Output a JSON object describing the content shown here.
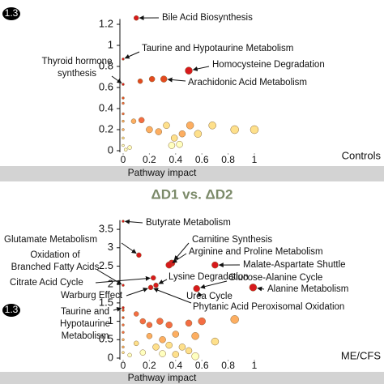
{
  "title": "ΔD1 vs. ΔD2",
  "chart_data": [
    {
      "type": "scatter",
      "panel_label": "Controls",
      "x_label": "Pathway impact",
      "threshold": 1.3,
      "xlim": [
        0,
        1
      ],
      "xticks": [
        0,
        0.2,
        0.4,
        0.6,
        0.8,
        1
      ],
      "ylim": [
        0,
        1.25
      ],
      "yticks": [
        0,
        0.2,
        0.4,
        0.6,
        0.8,
        1,
        1.2
      ],
      "series": [
        {
          "x": [
            0.1,
            0,
            0.5,
            0,
            0.13,
            0.22,
            0.31,
            0,
            0,
            0,
            0,
            0,
            0,
            0,
            0.08,
            0.14,
            0.2,
            0.27,
            0.33,
            0.39,
            0.45,
            0.51,
            0.57,
            0.68,
            0.85,
            1.0,
            0.37,
            0.43,
            0.05,
            0.02
          ],
          "values": [
            1.26,
            0.87,
            0.76,
            0.63,
            0.66,
            0.68,
            0.68,
            0.5,
            0.45,
            0.35,
            0.28,
            0.2,
            0.12,
            0.05,
            0.28,
            0.29,
            0.2,
            0.18,
            0.24,
            0.12,
            0.16,
            0.24,
            0.16,
            0.24,
            0.2,
            0.2,
            0.05,
            0.06,
            0.03,
            0.01
          ],
          "sizes": [
            3,
            1.5,
            4.5,
            1.5,
            3,
            3.5,
            4,
            1.5,
            1.5,
            1.5,
            1.5,
            1.5,
            1.5,
            1.5,
            3,
            3.5,
            4,
            4,
            4,
            4,
            4,
            4.5,
            4.5,
            4.5,
            5,
            5,
            4,
            4,
            2.5,
            2
          ],
          "colors": [
            "#d7191c",
            "#d7191c",
            "#d7191c",
            "#d7191c",
            "#e34a1f",
            "#e34a1f",
            "#e34a1f",
            "#e34a1f",
            "#f46d43",
            "#f46d43",
            "#fdae61",
            "#fdae61",
            "#fee08b",
            "#ffffbf",
            "#fdae61",
            "#f46d43",
            "#fdae61",
            "#fdae61",
            "#fee08b",
            "#fee08b",
            "#fdae61",
            "#fdae61",
            "#fee08b",
            "#fee08b",
            "#fee08b",
            "#fee08b",
            "#ffffbf",
            "#ffffbf",
            "#ffffbf",
            "#ffffbf"
          ]
        }
      ],
      "annotations": [
        [
          "Bile Acid Biosynthesis"
        ],
        [
          "Taurine and Hypotaurine Metabolism"
        ],
        [
          "Thyroid hormone",
          "synthesis"
        ],
        [
          "Homocysteine Degradation"
        ],
        [
          "Arachidonic Acid Metabolism"
        ]
      ]
    },
    {
      "type": "scatter",
      "panel_label": "ME/CFS",
      "x_label": "Pathway impact",
      "threshold": 1.3,
      "xlim": [
        0,
        1
      ],
      "xticks": [
        0,
        0.2,
        0.4,
        0.6,
        0.8,
        1
      ],
      "ylim": [
        0,
        3.75
      ],
      "yticks": [
        0,
        0.5,
        1,
        1.5,
        2,
        2.5,
        3,
        3.5
      ],
      "series": [
        {
          "x": [
            0,
            0.12,
            0.37,
            0.35,
            0.7,
            0,
            0.23,
            0.25,
            0.21,
            0.56,
            0.99,
            0,
            0,
            0,
            0,
            0,
            0,
            0,
            0,
            0.1,
            0.15,
            0.2,
            0.28,
            0.35,
            0.5,
            0.6,
            0.85,
            0.4,
            0.55,
            0.7,
            0.3,
            0.2,
            0.1,
            0.25,
            0.35,
            0.45,
            0.5,
            0.15,
            0.3,
            0.4,
            0.55,
            0.05
          ],
          "values": [
            3.72,
            2.8,
            2.58,
            2.53,
            2.53,
            1.98,
            2.18,
            1.98,
            1.92,
            1.89,
            1.92,
            1.37,
            1.3,
            1.1,
            0.9,
            0.7,
            0.5,
            0.3,
            0.15,
            1.2,
            1.0,
            0.9,
            1.0,
            0.9,
            0.95,
            1.0,
            1.05,
            0.65,
            0.6,
            0.45,
            0.5,
            0.6,
            0.4,
            0.3,
            0.35,
            0.3,
            0.2,
            0.15,
            0.12,
            0.1,
            0.05,
            0.08
          ],
          "sizes": [
            1.5,
            3,
            4,
            4,
            4,
            1.5,
            3,
            3,
            3,
            4,
            4.5,
            1.5,
            1.5,
            1.5,
            1.5,
            1.5,
            1.5,
            1.5,
            1.5,
            3,
            3.5,
            3.5,
            4,
            4,
            4,
            4.5,
            5,
            4,
            4.5,
            4.5,
            4,
            3.5,
            3,
            4,
            4,
            4,
            4,
            3.5,
            4,
            4,
            4.5,
            2.5
          ],
          "colors": [
            "#d7191c",
            "#d7191c",
            "#d7191c",
            "#d7191c",
            "#d7191c",
            "#d7191c",
            "#d7191c",
            "#d7191c",
            "#d7191c",
            "#d7191c",
            "#d7191c",
            "#d7191c",
            "#e34a1f",
            "#e34a1f",
            "#f46d43",
            "#f46d43",
            "#fdae61",
            "#fdae61",
            "#fee08b",
            "#f46d43",
            "#f46d43",
            "#f46d43",
            "#f46d43",
            "#f46d43",
            "#f46d43",
            "#f46d43",
            "#fdae61",
            "#fdae61",
            "#fdae61",
            "#fee08b",
            "#fdae61",
            "#fdae61",
            "#fee08b",
            "#fee08b",
            "#fee08b",
            "#fee08b",
            "#fee08b",
            "#ffffbf",
            "#ffffbf",
            "#fee08b",
            "#ffffbf",
            "#ffffbf"
          ]
        }
      ],
      "annotations": [
        [
          "Butyrate Metabolism"
        ],
        [
          "Glutamate Metabolism"
        ],
        [
          "Carnitine Synthesis"
        ],
        [
          "Arginine and Proline Metabolism"
        ],
        [
          "Oxidation of",
          "Branched Fatty Acids"
        ],
        [
          "Malate-Aspartate Shuttle"
        ],
        [
          "Citrate Acid Cycle"
        ],
        [
          "Lysine Degradation"
        ],
        [
          "Warburg Effect"
        ],
        [
          "Glucose-Alanine Cycle"
        ],
        [
          "Urea Cycle"
        ],
        [
          "Alanine Metabolism"
        ],
        [
          "Phytanic Acid Peroxisomal Oxidation"
        ],
        [
          "Taurine and",
          "Hypotaurine",
          "Metabolism"
        ]
      ]
    }
  ]
}
